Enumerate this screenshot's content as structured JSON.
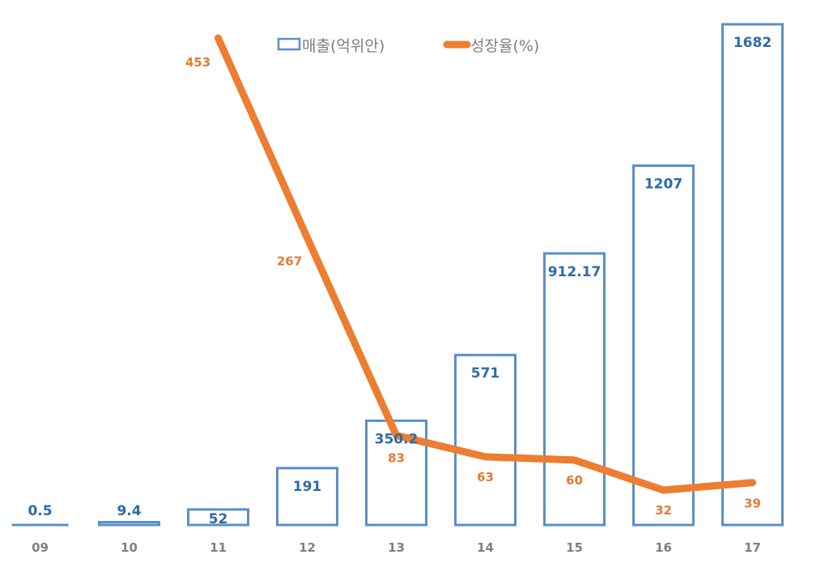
{
  "colors": {
    "bar_stroke": "#5b8fc7",
    "bar_label": "#2e6aa8",
    "line": "#ed7d31",
    "line_label": "#e07b39",
    "category_label": "#7f7f7f",
    "legend_text": "#7f7f7f"
  },
  "legend": {
    "bar_label": "매출(억위안)",
    "line_label": "성장율(%)"
  },
  "chart_data": {
    "type": "bar+line",
    "title": "",
    "xlabel": "",
    "ylabel": "",
    "categories": [
      "09",
      "10",
      "11",
      "12",
      "13",
      "14",
      "15",
      "16",
      "17"
    ],
    "series": [
      {
        "name": "매출(억위안)",
        "type": "bar",
        "values": [
          0.5,
          9.4,
          52,
          191,
          350.2,
          571,
          912.17,
          1207,
          1682
        ],
        "labels": [
          "0.5",
          "9.4",
          "52",
          "191",
          "350.2",
          "571",
          "912.17",
          "1207",
          "1682"
        ]
      },
      {
        "name": "성장율(%)",
        "type": "line",
        "values": [
          null,
          null,
          453,
          267,
          83,
          63,
          60,
          32,
          39
        ],
        "labels": [
          "",
          "",
          "453",
          "267",
          "83",
          "63",
          "60",
          "32",
          "39"
        ]
      }
    ],
    "legend_position": "top",
    "grid": false,
    "axes_visible": false
  }
}
